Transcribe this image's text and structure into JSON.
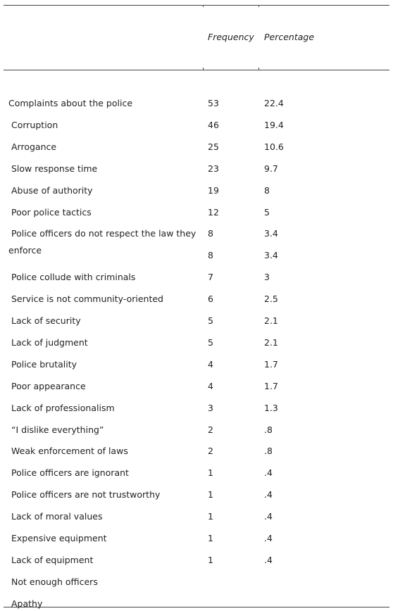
{
  "table": {
    "header": [
      "Frequency",
      "Percentage"
    ],
    "rows": [
      {
        "label": "Complaints about the police",
        "frequency": "53",
        "percentage": "22.4"
      },
      {
        "label": "Corruption",
        "frequency": "46",
        "percentage": "19.4"
      },
      {
        "label": "Arrogance",
        "frequency": "25",
        "percentage": "10.6"
      },
      {
        "label": "Slow response time",
        "frequency": "23",
        "percentage": "9.7"
      },
      {
        "label": "Abuse of authority",
        "frequency": "19",
        "percentage": "8"
      },
      {
        "label": "Poor police tactics",
        "frequency": "12",
        "percentage": "5"
      },
      {
        "label": "Police officers do not respect the law they",
        "frequency": "8",
        "percentage": "3.4"
      },
      {
        "label": "enforce",
        "frequency": "8",
        "percentage": "3.4"
      },
      {
        "label": "Police collude with criminals",
        "frequency": "7",
        "percentage": "3"
      },
      {
        "label": "Service is not community-oriented",
        "frequency": "6",
        "percentage": "2.5"
      },
      {
        "label": "Lack of security",
        "frequency": "5",
        "percentage": "2.1"
      },
      {
        "label": "Lack of judgment",
        "frequency": "5",
        "percentage": "2.1"
      },
      {
        "label": "Police brutality",
        "frequency": "4",
        "percentage": "1.7"
      },
      {
        "label": "Poor appearance",
        "frequency": "4",
        "percentage": "1.7"
      },
      {
        "label": "Lack of professionalism",
        "frequency": "3",
        "percentage": "1.3"
      },
      {
        "label": "“I dislike everything”",
        "frequency": "2",
        "percentage": ".8"
      },
      {
        "label": "Weak enforcement of laws",
        "frequency": "2",
        "percentage": ".8"
      },
      {
        "label": "Police officers are ignorant",
        "frequency": "1",
        "percentage": ".4"
      },
      {
        "label": "Police officers are not trustworthy",
        "frequency": "1",
        "percentage": ".4"
      },
      {
        "label": "Lack of moral values",
        "frequency": "1",
        "percentage": ".4"
      },
      {
        "label": "Expensive equipment",
        "frequency": "1",
        "percentage": ".4"
      },
      {
        "label": "Lack of equipment",
        "frequency": "1",
        "percentage": ".4"
      },
      {
        "label": "Not enough officers"
      },
      {
        "label": "Apathy"
      }
    ]
  }
}
